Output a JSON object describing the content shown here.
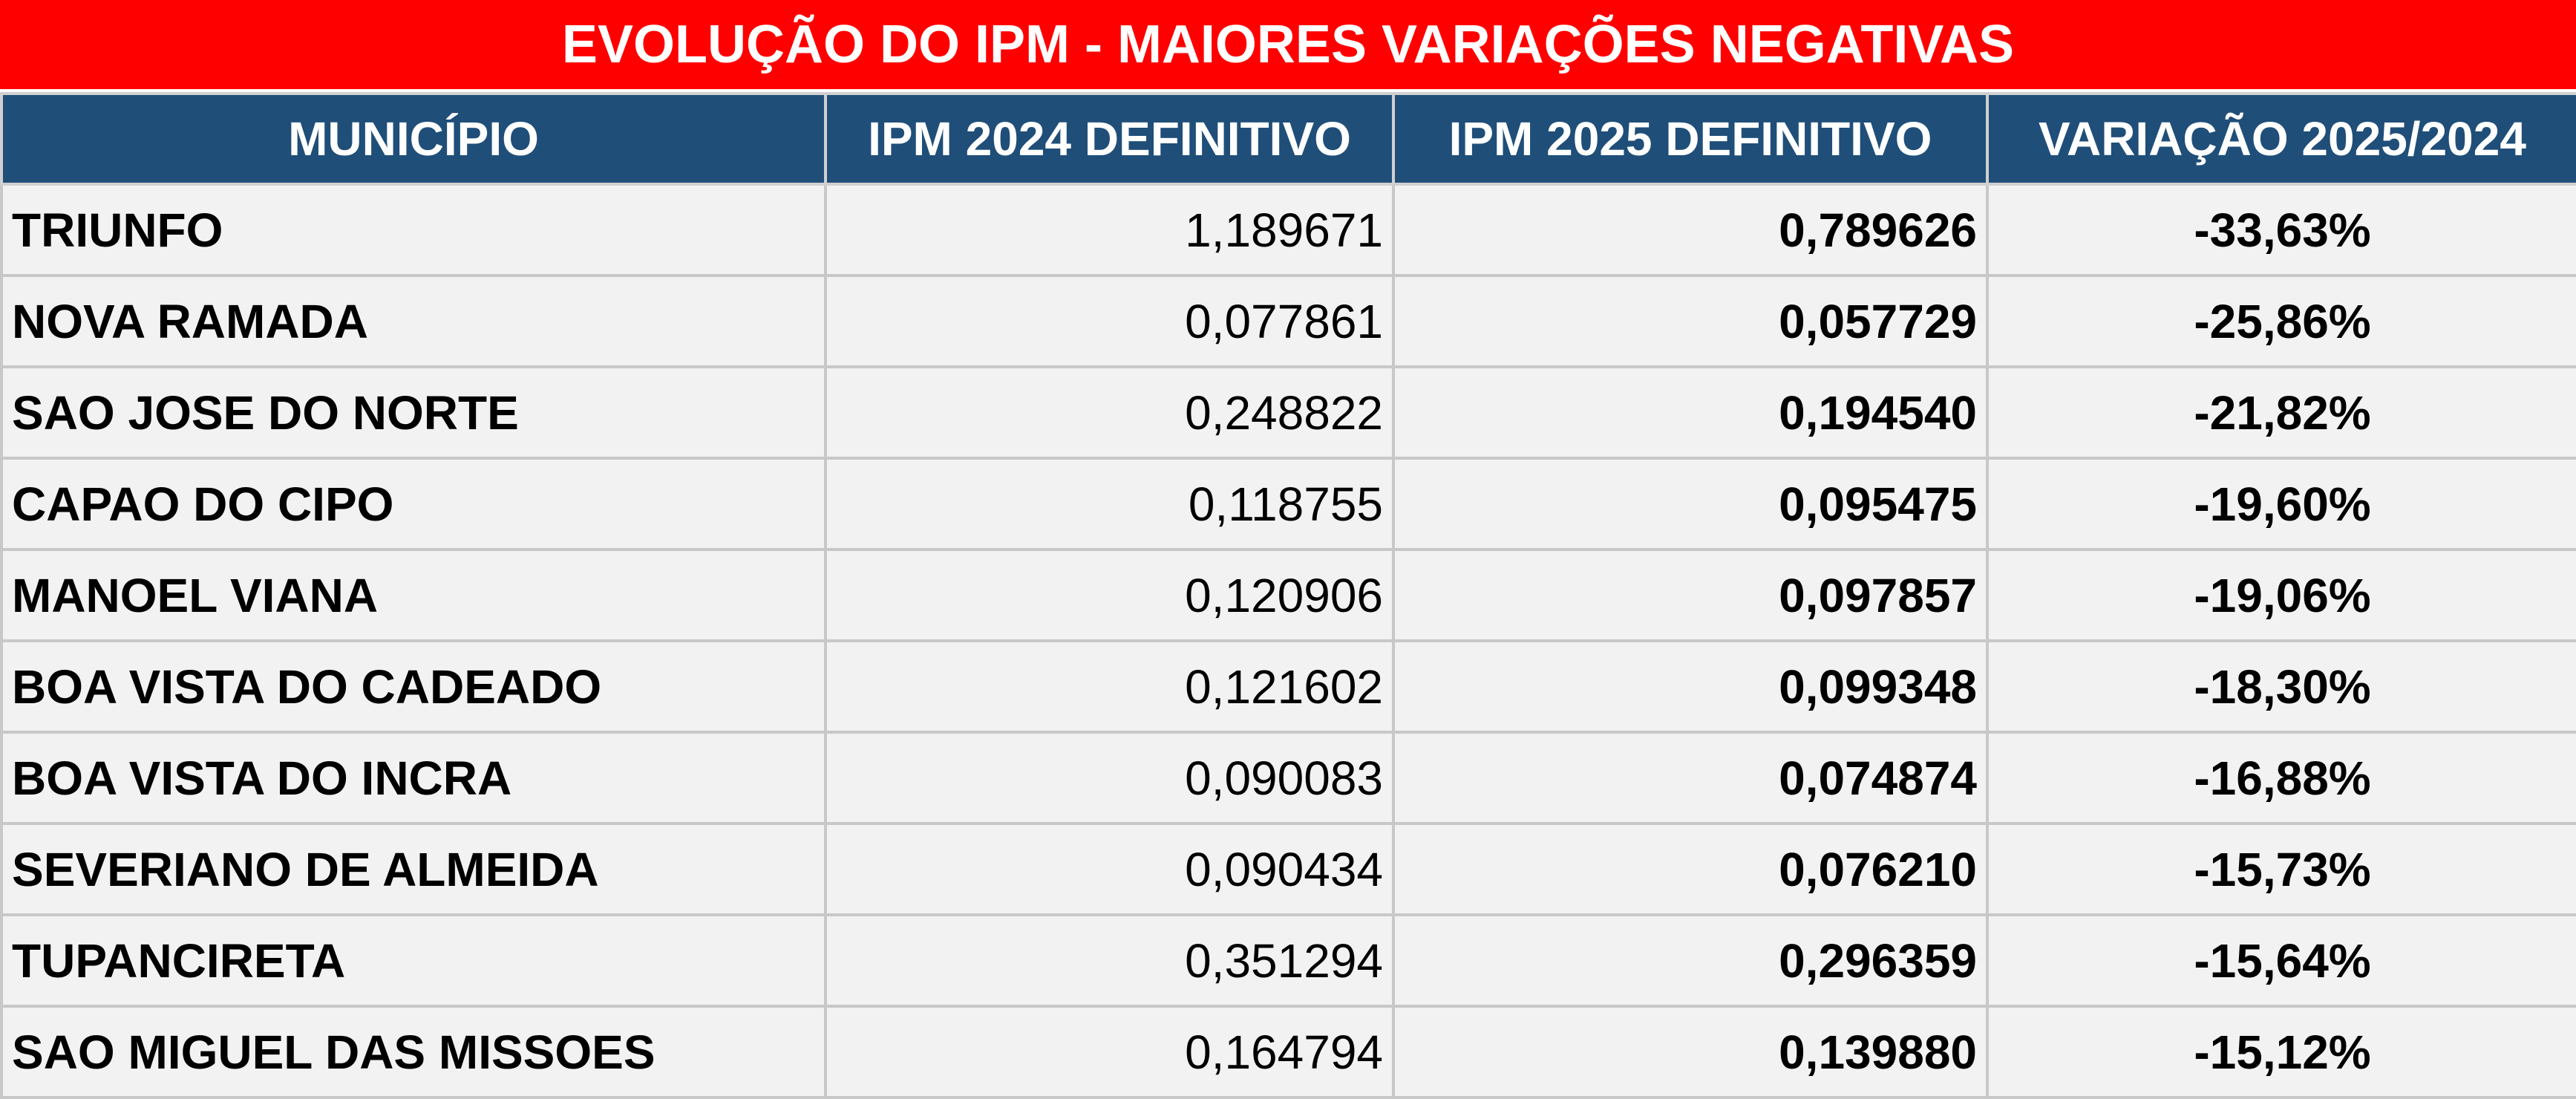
{
  "title": "EVOLUÇÃO DO IPM - MAIORES VARIAÇÕES NEGATIVAS",
  "colors": {
    "title_background": "#ff0000",
    "header_background": "#1f4e79",
    "negative_value": "#ff0000",
    "row_background": "#f2f2f2"
  },
  "headers": {
    "municipio": "MUNICÍPIO",
    "ipm_2024": "IPM 2024 DEFINITIVO",
    "ipm_2025": "IPM 2025 DEFINITIVO",
    "variacao": "VARIAÇÃO 2025/2024"
  },
  "rows": [
    {
      "municipio": "TRIUNFO",
      "ipm_2024": "1,189671",
      "ipm_2025": "0,789626",
      "variacao": "-33,63%"
    },
    {
      "municipio": "NOVA RAMADA",
      "ipm_2024": "0,077861",
      "ipm_2025": "0,057729",
      "variacao": "-25,86%"
    },
    {
      "municipio": "SAO JOSE DO NORTE",
      "ipm_2024": "0,248822",
      "ipm_2025": "0,194540",
      "variacao": "-21,82%"
    },
    {
      "municipio": "CAPAO DO CIPO",
      "ipm_2024": "0,118755",
      "ipm_2025": "0,095475",
      "variacao": "-19,60%"
    },
    {
      "municipio": "MANOEL VIANA",
      "ipm_2024": "0,120906",
      "ipm_2025": "0,097857",
      "variacao": "-19,06%"
    },
    {
      "municipio": "BOA VISTA DO CADEADO",
      "ipm_2024": "0,121602",
      "ipm_2025": "0,099348",
      "variacao": "-18,30%"
    },
    {
      "municipio": "BOA VISTA DO INCRA",
      "ipm_2024": "0,090083",
      "ipm_2025": "0,074874",
      "variacao": "-16,88%"
    },
    {
      "municipio": "SEVERIANO DE ALMEIDA",
      "ipm_2024": "0,090434",
      "ipm_2025": "0,076210",
      "variacao": "-15,73%"
    },
    {
      "municipio": "TUPANCIRETA",
      "ipm_2024": "0,351294",
      "ipm_2025": "0,296359",
      "variacao": "-15,64%"
    },
    {
      "municipio": "SAO MIGUEL DAS MISSOES",
      "ipm_2024": "0,164794",
      "ipm_2025": "0,139880",
      "variacao": "-15,12%"
    }
  ]
}
